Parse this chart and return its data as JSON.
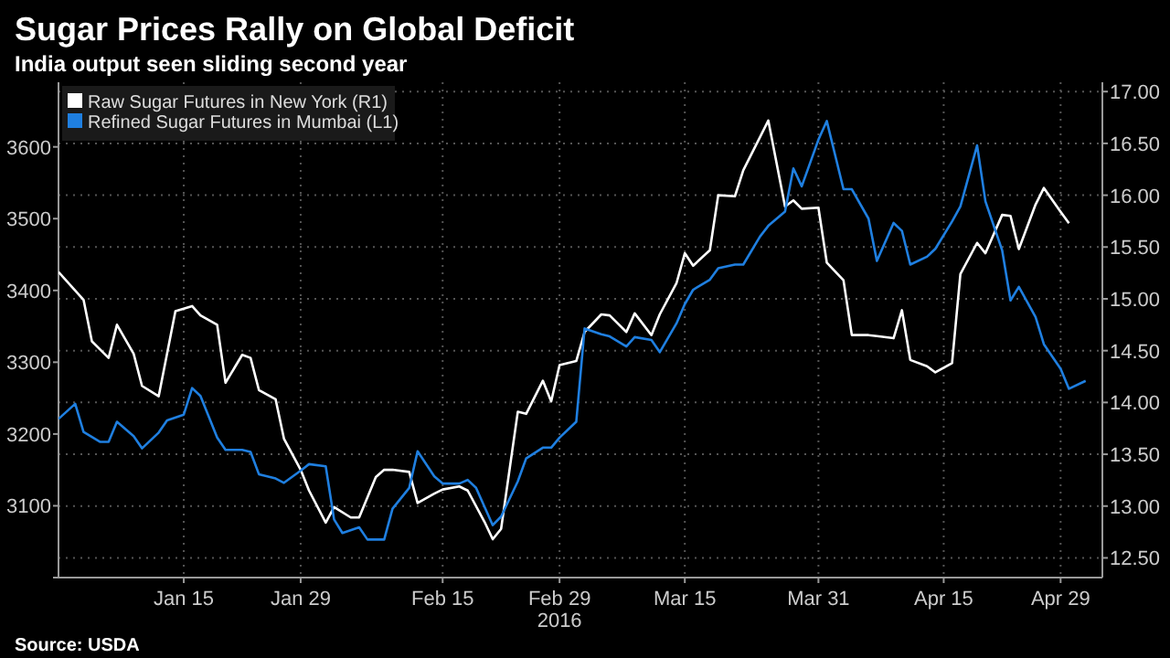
{
  "chart_data": {
    "type": "line",
    "title": "Sugar Prices Rally on Global Deficit",
    "subtitle": "India output seen sliding second year",
    "annotations": [
      "Source: USDA"
    ],
    "xlim": [
      "2015-12-31",
      "2016-05-04"
    ],
    "xticks": [
      {
        "value": "2016-01-15",
        "label": "Jan 15"
      },
      {
        "value": "2016-01-29",
        "label": "Jan 29"
      },
      {
        "value": "2016-02-15",
        "label": "Feb 15"
      },
      {
        "value": "2016-02-29",
        "label": "Feb 29\n2016"
      },
      {
        "value": "2016-03-15",
        "label": "Mar 15"
      },
      {
        "value": "2016-03-31",
        "label": "Mar 31"
      },
      {
        "value": "2016-04-15",
        "label": "Apr 15"
      },
      {
        "value": "2016-04-29",
        "label": "Apr 29"
      }
    ],
    "ylim": [
      3000,
      3690
    ],
    "yticks": [
      {
        "value": 3000,
        "label": null
      },
      3100,
      3200,
      3300,
      3400,
      3500,
      3600
    ],
    "y2lim": [
      12.31,
      17.09
    ],
    "y2ticks": [
      {
        "value": 12.5,
        "label": "12.50"
      },
      {
        "value": 13,
        "label": "13.00"
      },
      {
        "value": 13.5,
        "label": "13.50"
      },
      {
        "value": 14,
        "label": "14.00"
      },
      {
        "value": 14.5,
        "label": "14.50"
      },
      {
        "value": 15,
        "label": "15.00"
      },
      {
        "value": 15.5,
        "label": "15.50"
      },
      {
        "value": 16,
        "label": "16.00"
      },
      {
        "value": 16.5,
        "label": "16.50"
      },
      {
        "value": 17,
        "label": "17.00"
      }
    ],
    "grid": true,
    "legend": "top left",
    "marker": "none",
    "line_style": "solid",
    "series": [
      {
        "name": "Raw Sugar Futures in New York (R1)",
        "color": "#ffffff",
        "axis": "y2",
        "x": [
          "2015-12-31",
          "2016-01-03",
          "2016-01-04",
          "2016-01-06",
          "2016-01-07",
          "2016-01-09",
          "2016-01-10",
          "2016-01-12",
          "2016-01-13",
          "2016-01-14",
          "2016-01-16",
          "2016-01-17",
          "2016-01-19",
          "2016-01-20",
          "2016-01-22",
          "2016-01-23",
          "2016-01-24",
          "2016-01-26",
          "2016-01-27",
          "2016-01-29",
          "2016-01-30",
          "2016-02-01",
          "2016-02-02",
          "2016-02-04",
          "2016-02-05",
          "2016-02-07",
          "2016-02-08",
          "2016-02-09",
          "2016-02-11",
          "2016-02-12",
          "2016-02-14",
          "2016-02-15",
          "2016-02-17",
          "2016-02-18",
          "2016-02-20",
          "2016-02-21",
          "2016-02-22",
          "2016-02-24",
          "2016-02-25",
          "2016-02-27",
          "2016-02-28",
          "2016-02-29",
          "2016-03-02",
          "2016-03-03",
          "2016-03-05",
          "2016-03-06",
          "2016-03-08",
          "2016-03-09",
          "2016-03-11",
          "2016-03-12",
          "2016-03-14",
          "2016-03-15",
          "2016-03-16",
          "2016-03-18",
          "2016-03-19",
          "2016-03-21",
          "2016-03-22",
          "2016-03-24",
          "2016-03-25",
          "2016-03-27",
          "2016-03-28",
          "2016-03-29",
          "2016-03-31",
          "2016-04-01",
          "2016-04-03",
          "2016-04-04",
          "2016-04-06",
          "2016-04-07",
          "2016-04-09",
          "2016-04-10",
          "2016-04-11",
          "2016-04-13",
          "2016-04-14",
          "2016-04-16",
          "2016-04-17",
          "2016-04-19",
          "2016-04-20",
          "2016-04-22",
          "2016-04-23",
          "2016-04-24",
          "2016-04-26",
          "2016-04-27",
          "2016-04-29",
          "2016-04-30"
        ],
        "values": [
          15.26,
          14.99,
          14.59,
          14.43,
          14.75,
          14.47,
          14.16,
          14.06,
          14.47,
          14.88,
          14.93,
          14.84,
          14.75,
          14.19,
          14.46,
          14.43,
          14.12,
          14.03,
          13.65,
          13.35,
          13.15,
          12.84,
          12.99,
          12.89,
          12.89,
          13.28,
          13.35,
          13.35,
          13.33,
          13.03,
          13.12,
          13.16,
          13.19,
          13.15,
          12.85,
          12.68,
          12.78,
          13.91,
          13.89,
          14.21,
          14.01,
          14.36,
          14.4,
          14.68,
          14.85,
          14.84,
          14.68,
          14.86,
          14.65,
          14.85,
          15.15,
          15.44,
          15.32,
          15.47,
          16.0,
          15.99,
          16.24,
          16.56,
          16.72,
          15.89,
          15.95,
          15.87,
          15.88,
          15.35,
          15.18,
          14.65,
          14.65,
          14.64,
          14.62,
          14.89,
          14.41,
          14.35,
          14.29,
          14.38,
          15.24,
          15.54,
          15.44,
          15.81,
          15.8,
          15.48,
          15.91,
          16.07,
          15.84,
          15.73
        ]
      },
      {
        "name": "Refined Sugar Futures in Mumbai (L1)",
        "color": "#1f7fe0",
        "axis": "y",
        "x": [
          "2015-12-31",
          "2016-01-02",
          "2016-01-03",
          "2016-01-05",
          "2016-01-06",
          "2016-01-07",
          "2016-01-09",
          "2016-01-10",
          "2016-01-12",
          "2016-01-13",
          "2016-01-15",
          "2016-01-16",
          "2016-01-17",
          "2016-01-19",
          "2016-01-20",
          "2016-01-22",
          "2016-01-23",
          "2016-01-24",
          "2016-01-26",
          "2016-01-27",
          "2016-01-29",
          "2016-01-30",
          "2016-02-01",
          "2016-02-02",
          "2016-02-03",
          "2016-02-05",
          "2016-02-06",
          "2016-02-08",
          "2016-02-09",
          "2016-02-11",
          "2016-02-12",
          "2016-02-14",
          "2016-02-15",
          "2016-02-17",
          "2016-02-18",
          "2016-02-19",
          "2016-02-21",
          "2016-02-22",
          "2016-02-24",
          "2016-02-25",
          "2016-02-27",
          "2016-02-28",
          "2016-02-29",
          "2016-03-02",
          "2016-03-03",
          "2016-03-05",
          "2016-03-06",
          "2016-03-08",
          "2016-03-09",
          "2016-03-11",
          "2016-03-12",
          "2016-03-14",
          "2016-03-15",
          "2016-03-16",
          "2016-03-18",
          "2016-03-19",
          "2016-03-21",
          "2016-03-22",
          "2016-03-24",
          "2016-03-25",
          "2016-03-27",
          "2016-03-28",
          "2016-03-29",
          "2016-03-31",
          "2016-04-01",
          "2016-04-03",
          "2016-04-04",
          "2016-04-06",
          "2016-04-07",
          "2016-04-09",
          "2016-04-10",
          "2016-04-11",
          "2016-04-13",
          "2016-04-14",
          "2016-04-16",
          "2016-04-17",
          "2016-04-19",
          "2016-04-20",
          "2016-04-22",
          "2016-04-23",
          "2016-04-24",
          "2016-04-26",
          "2016-04-27",
          "2016-04-29",
          "2016-04-30",
          "2016-05-02"
        ],
        "values": [
          3221,
          3242,
          3203,
          3189,
          3189,
          3217,
          3197,
          3180,
          3202,
          3219,
          3227,
          3264,
          3253,
          3195,
          3178,
          3178,
          3175,
          3144,
          3138,
          3132,
          3149,
          3158,
          3155,
          3081,
          3062,
          3070,
          3053,
          3053,
          3096,
          3125,
          3176,
          3141,
          3131,
          3131,
          3136,
          3125,
          3073,
          3085,
          3134,
          3166,
          3181,
          3181,
          3195,
          3217,
          3347,
          3339,
          3336,
          3322,
          3335,
          3331,
          3314,
          3354,
          3381,
          3401,
          3415,
          3431,
          3436,
          3436,
          3475,
          3490,
          3510,
          3570,
          3545,
          3610,
          3636,
          3541,
          3541,
          3500,
          3441,
          3494,
          3483,
          3436,
          3447,
          3458,
          3496,
          3517,
          3602,
          3524,
          3456,
          3386,
          3405,
          3363,
          3325,
          3291,
          3263,
          3274
        ]
      }
    ]
  }
}
